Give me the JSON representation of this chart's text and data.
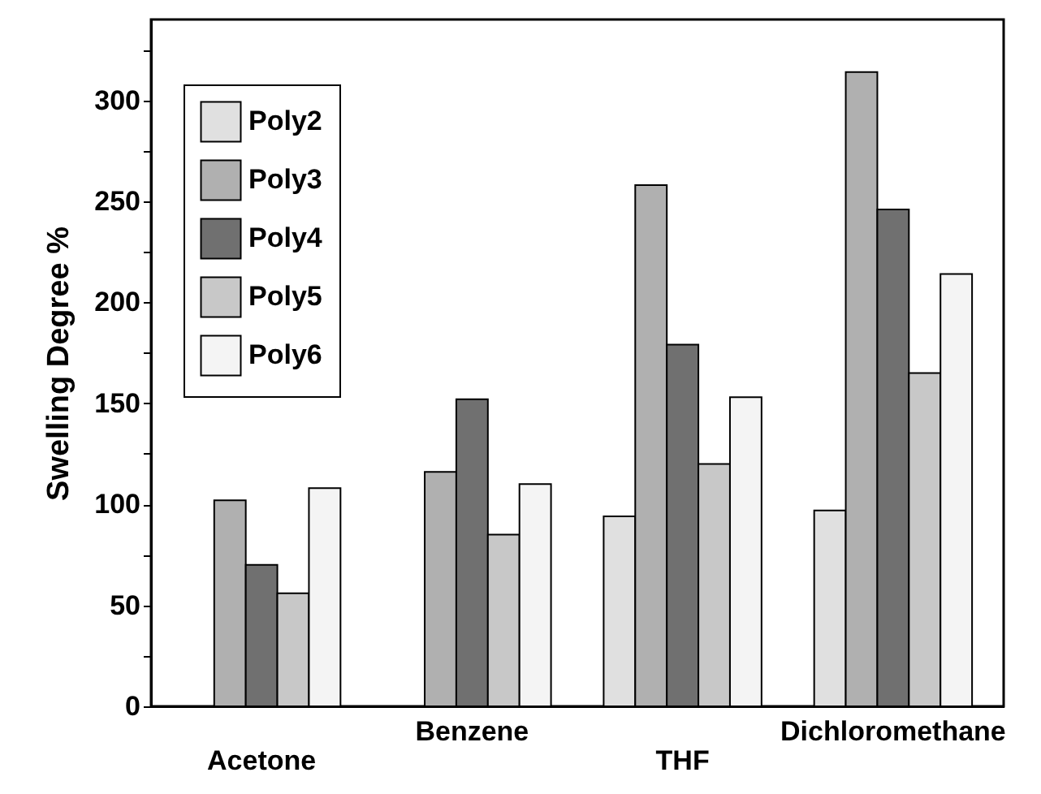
{
  "chart_data": {
    "type": "bar",
    "ylabel": "Swelling Degree %",
    "categories": [
      "Acetone",
      "Benzene",
      "THF",
      "Dichloromethane"
    ],
    "series": [
      {
        "name": "Poly2",
        "color": "#e0e0e0",
        "values": [
          null,
          null,
          94,
          97
        ]
      },
      {
        "name": "Poly3",
        "color": "#b0b0b0",
        "values": [
          102,
          116,
          258,
          314
        ]
      },
      {
        "name": "Poly4",
        "color": "#707070",
        "values": [
          70,
          152,
          179,
          246
        ]
      },
      {
        "name": "Poly5",
        "color": "#c8c8c8",
        "values": [
          56,
          85,
          120,
          165
        ]
      },
      {
        "name": "Poly6",
        "color": "#f4f4f4",
        "values": [
          108,
          110,
          153,
          214
        ]
      }
    ],
    "ylim": [
      0,
      340
    ],
    "yticks": [
      0,
      {
        "value": 25,
        "label": null
      },
      50,
      {
        "value": 75,
        "label": null
      },
      100,
      {
        "value": 125,
        "label": null
      },
      150,
      {
        "value": 175,
        "label": null
      },
      200,
      {
        "value": 225,
        "label": null
      },
      250,
      {
        "value": 275,
        "label": null
      },
      300,
      {
        "value": 325,
        "label": null
      }
    ],
    "grid": false,
    "legend": "top left"
  }
}
